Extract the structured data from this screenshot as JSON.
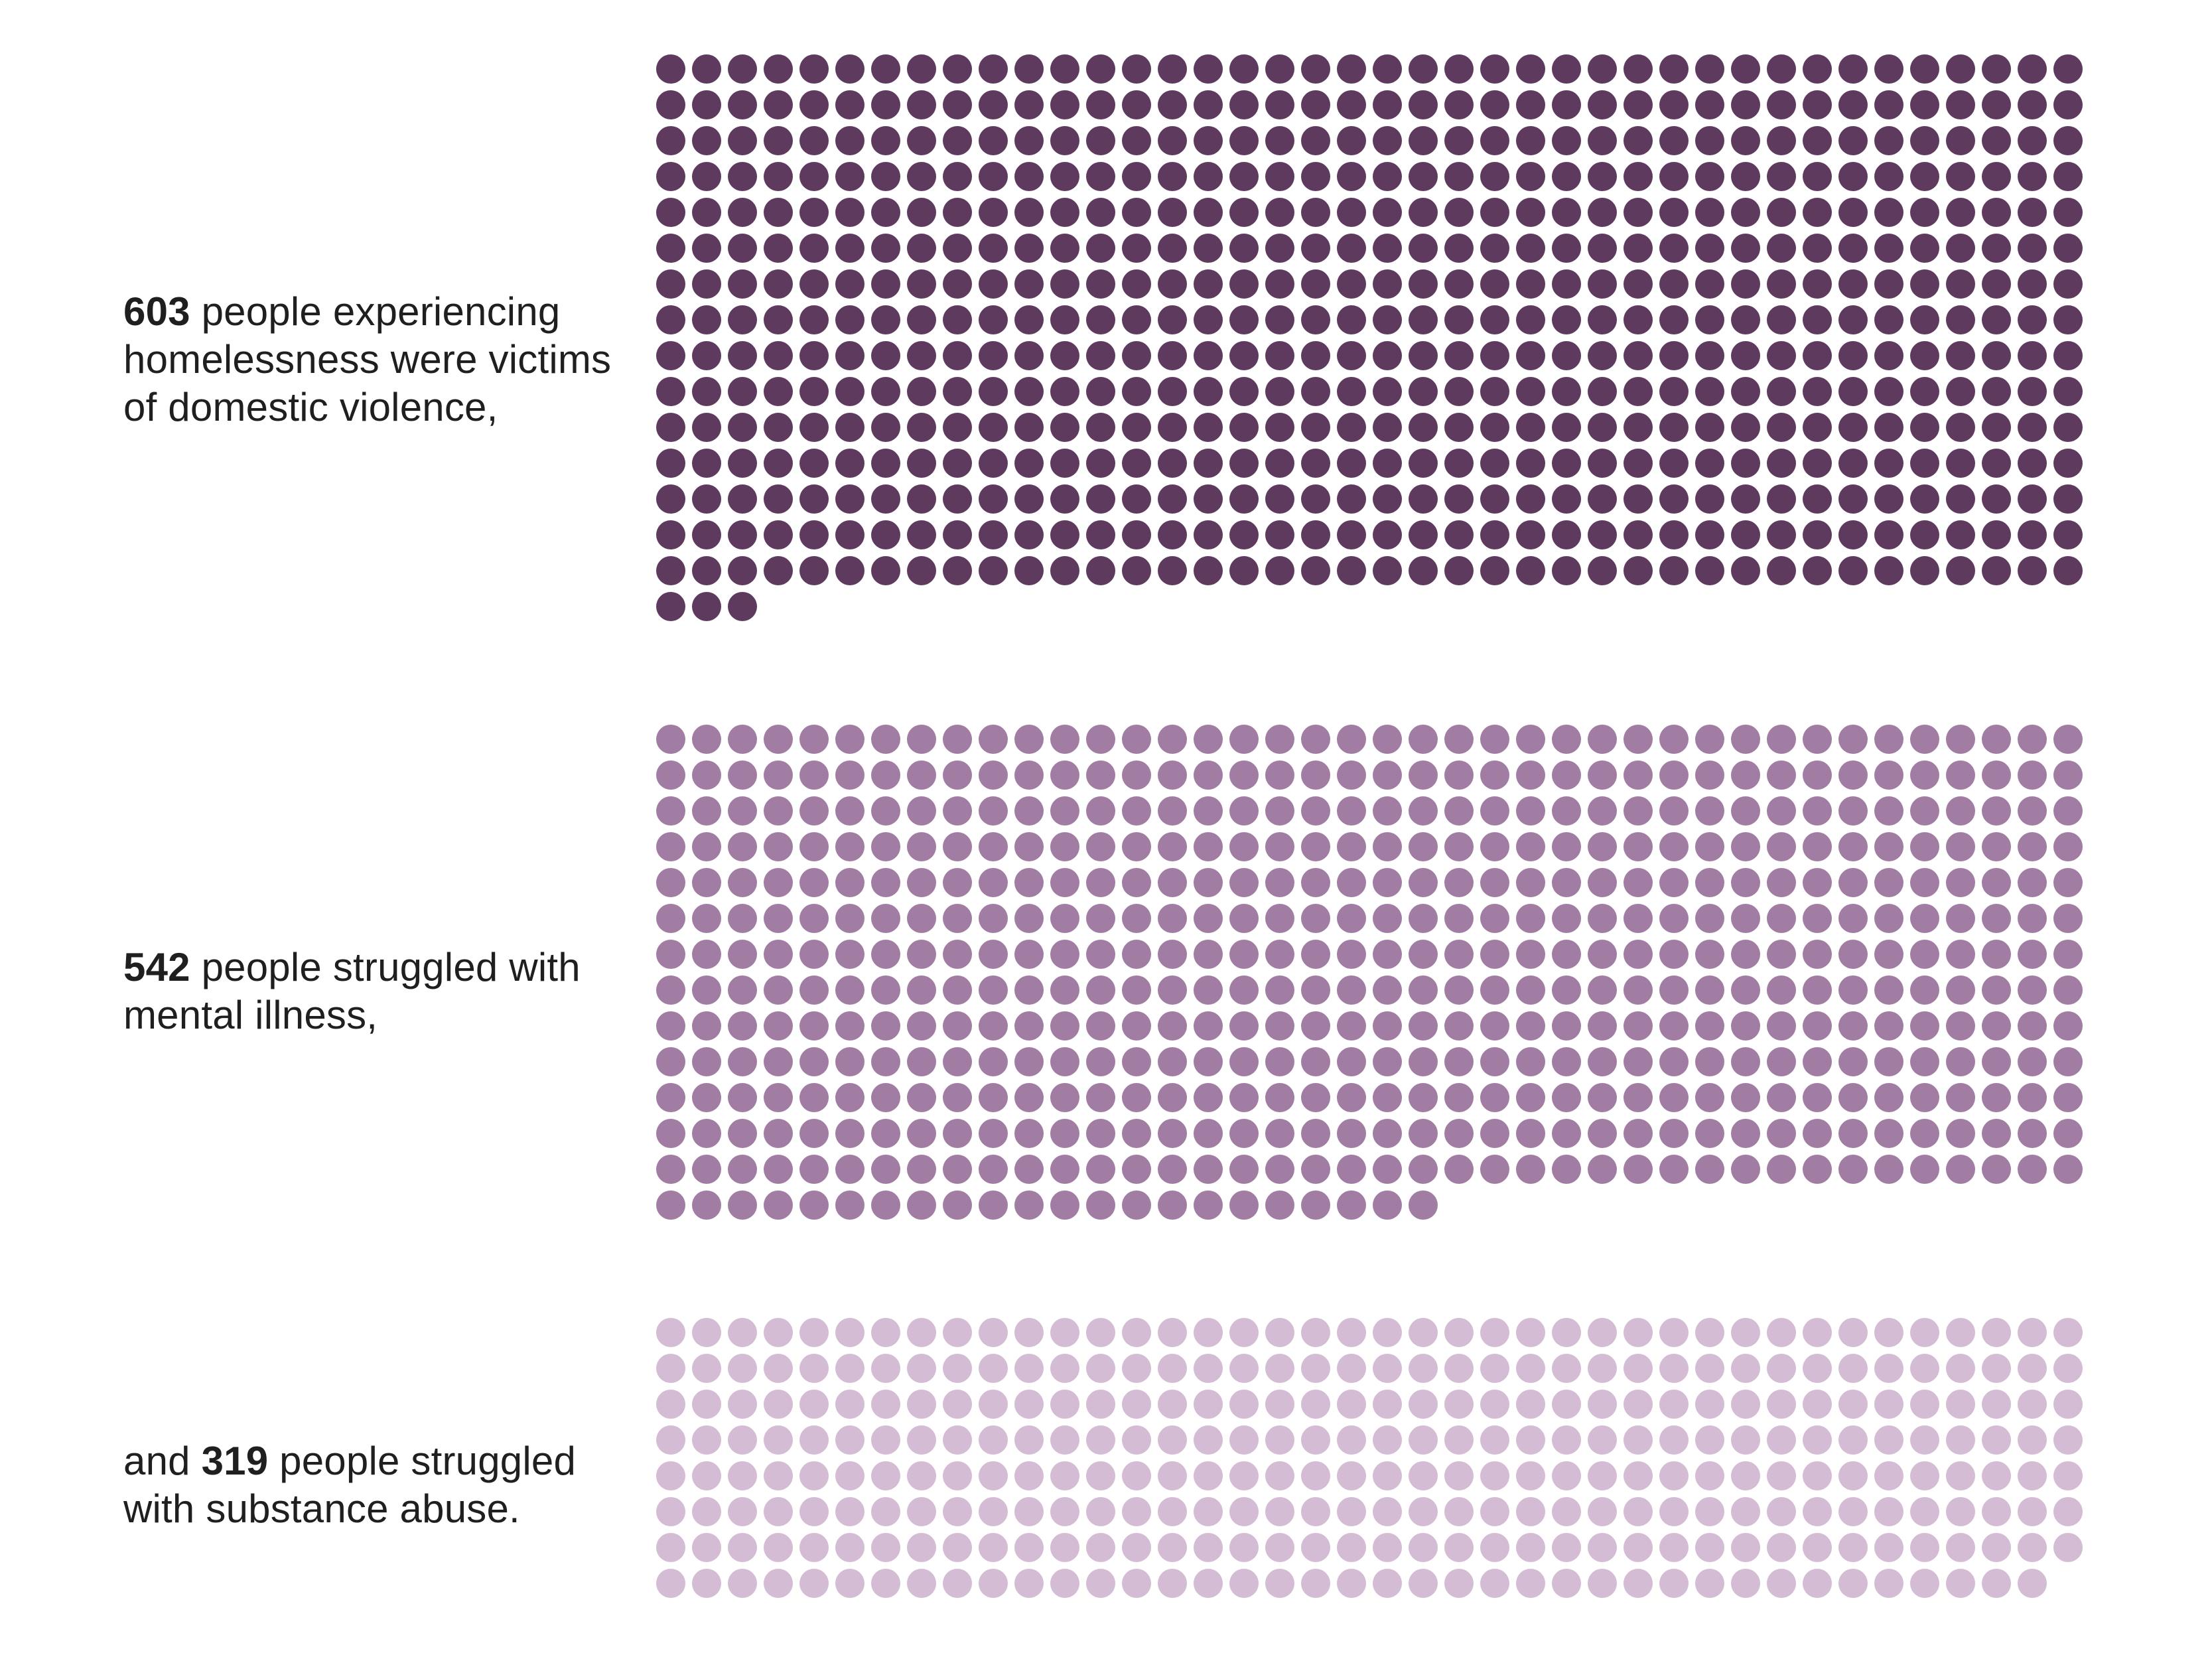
{
  "chart_data": {
    "type": "waffle",
    "columns": 40,
    "series": [
      {
        "value": 603,
        "color": "#5e3a5f",
        "label_prefix": "",
        "label_number": "603",
        "label_rest": " people experiencing homelessness were victims of domestic violence,"
      },
      {
        "value": 542,
        "color": "#a17ca3",
        "label_prefix": "",
        "label_number": "542",
        "label_rest": " people struggled with mental illness,"
      },
      {
        "value": 319,
        "color": "#d4bdd4",
        "label_prefix": "and ",
        "label_number": "319",
        "label_rest": " people struggled with substance abuse."
      }
    ]
  }
}
